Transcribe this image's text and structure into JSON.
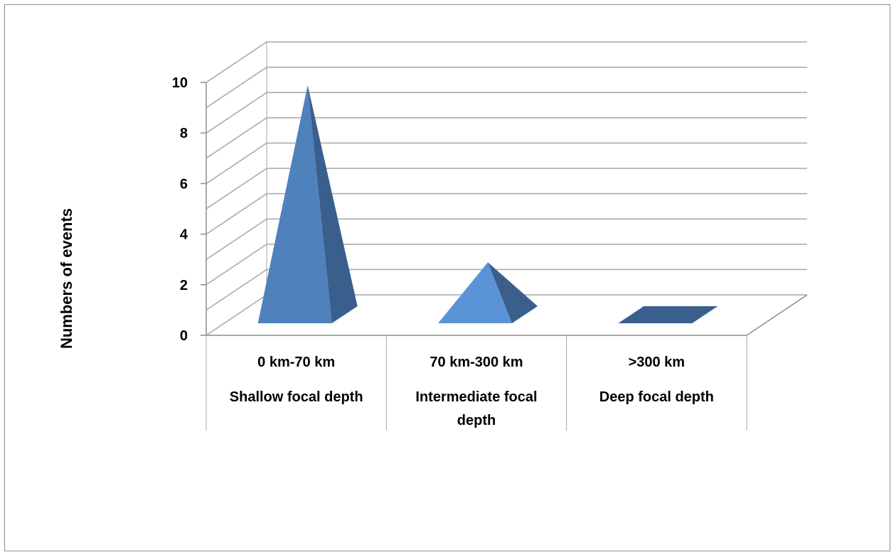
{
  "chart_data": {
    "type": "bar",
    "bar_shape": "3d-pyramid",
    "categories": [
      {
        "range": "0 km-70 km",
        "name": "Shallow focal depth"
      },
      {
        "range": "70 km-300 km",
        "name": "Intermediate focal depth"
      },
      {
        "range": ">300 km",
        "name": "Deep focal depth"
      }
    ],
    "values": [
      10,
      3,
      0
    ],
    "ylabel": "Numbers of events",
    "xlabel": "",
    "ylim": [
      0,
      10
    ],
    "yticks": [
      "0",
      "2",
      "4",
      "6",
      "8",
      "10"
    ],
    "grid": true,
    "legend": "none",
    "colors": {
      "front": [
        "#4f81bd",
        "#5a93d6",
        "#4f81bd"
      ],
      "side": "#3a5f8d",
      "grid": "#a6a6a6",
      "axis": "#8c8c8c"
    }
  }
}
